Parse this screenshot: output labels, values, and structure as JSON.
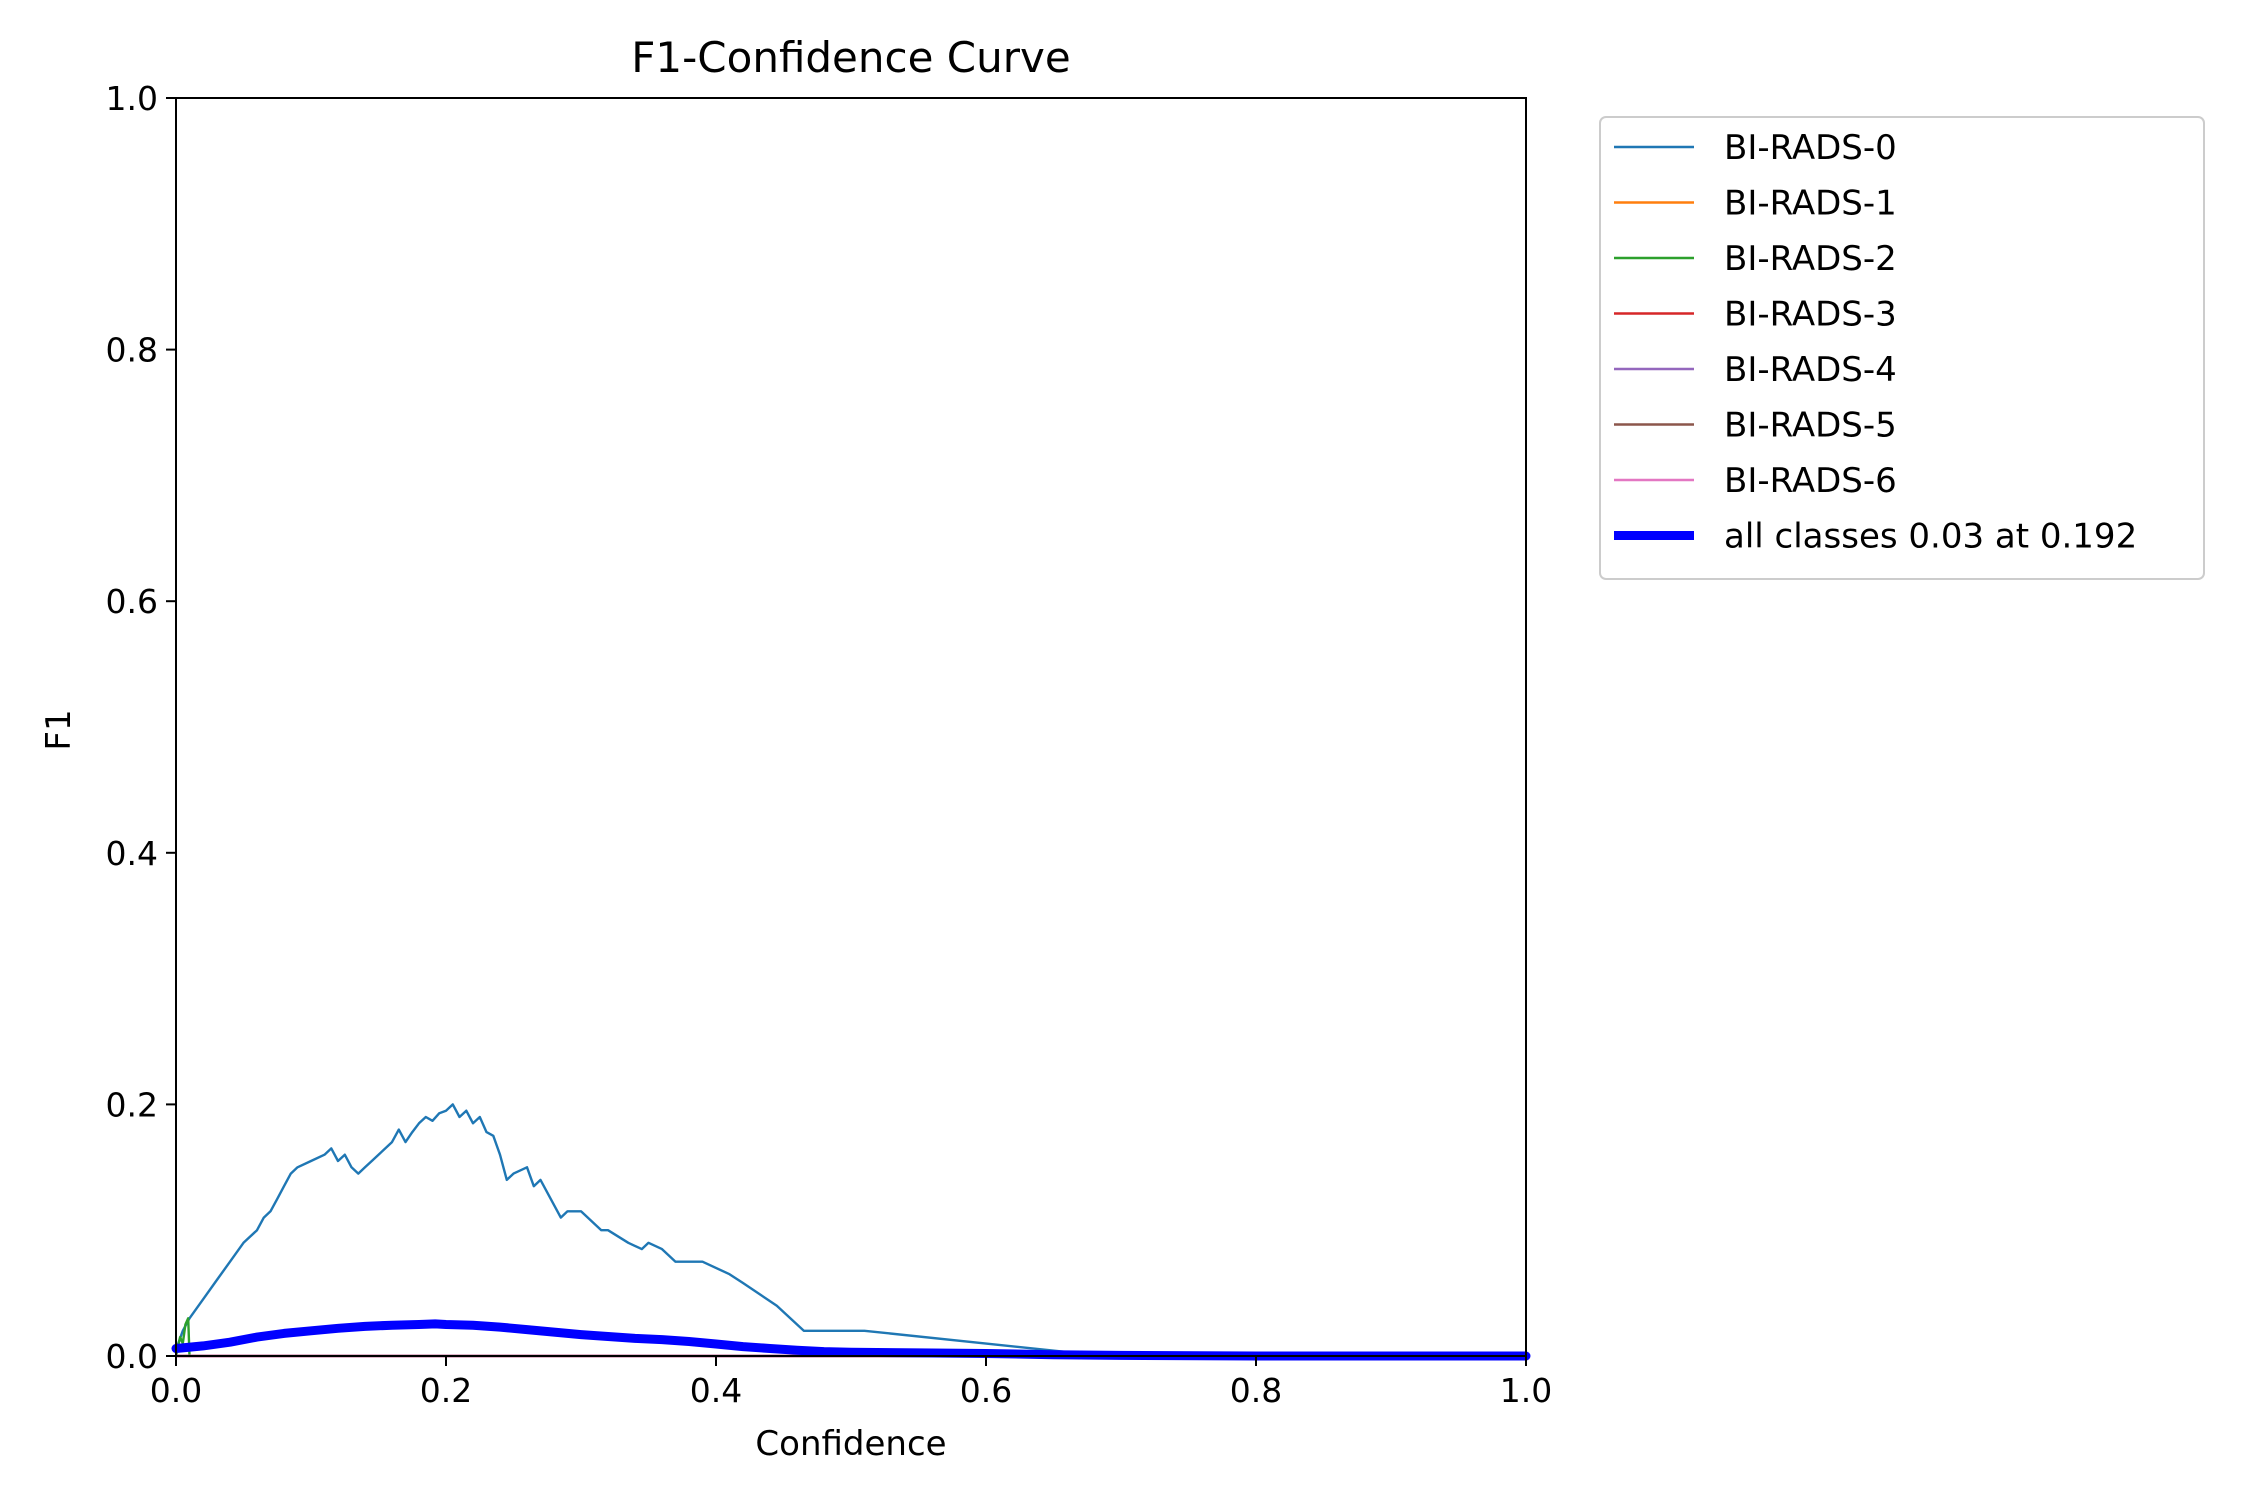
{
  "chart_data": {
    "type": "line",
    "title": "F1-Confidence Curve",
    "xlabel": "Confidence",
    "ylabel": "F1",
    "xlim": [
      0,
      1
    ],
    "ylim": [
      0,
      1
    ],
    "x_ticks": [
      "0.0",
      "0.2",
      "0.4",
      "0.6",
      "0.8",
      "1.0"
    ],
    "y_ticks": [
      "0.0",
      "0.2",
      "0.4",
      "0.6",
      "0.8",
      "1.0"
    ],
    "grid": false,
    "legend_position": "outside-top-right",
    "series": [
      {
        "name": "BI-RADS-0",
        "color": "#1f77b4",
        "x": [
          0.0,
          0.005,
          0.01,
          0.02,
          0.03,
          0.04,
          0.05,
          0.06,
          0.065,
          0.07,
          0.075,
          0.08,
          0.085,
          0.09,
          0.1,
          0.11,
          0.115,
          0.12,
          0.125,
          0.13,
          0.135,
          0.14,
          0.145,
          0.15,
          0.155,
          0.16,
          0.165,
          0.17,
          0.175,
          0.18,
          0.185,
          0.19,
          0.195,
          0.2,
          0.205,
          0.21,
          0.215,
          0.22,
          0.225,
          0.23,
          0.235,
          0.24,
          0.245,
          0.25,
          0.26,
          0.265,
          0.27,
          0.285,
          0.29,
          0.3,
          0.315,
          0.32,
          0.335,
          0.345,
          0.35,
          0.36,
          0.37,
          0.39,
          0.41,
          0.42,
          0.445,
          0.465,
          0.51,
          0.67,
          1.0
        ],
        "y": [
          0.005,
          0.02,
          0.03,
          0.045,
          0.06,
          0.075,
          0.09,
          0.1,
          0.11,
          0.115,
          0.125,
          0.135,
          0.145,
          0.15,
          0.155,
          0.16,
          0.165,
          0.155,
          0.16,
          0.15,
          0.145,
          0.15,
          0.155,
          0.16,
          0.165,
          0.17,
          0.18,
          0.17,
          0.178,
          0.185,
          0.19,
          0.187,
          0.193,
          0.195,
          0.2,
          0.19,
          0.195,
          0.185,
          0.19,
          0.178,
          0.175,
          0.16,
          0.14,
          0.145,
          0.15,
          0.135,
          0.14,
          0.11,
          0.115,
          0.115,
          0.1,
          0.1,
          0.09,
          0.085,
          0.09,
          0.085,
          0.075,
          0.075,
          0.065,
          0.058,
          0.04,
          0.02,
          0.02,
          0.002,
          0.0
        ]
      },
      {
        "name": "BI-RADS-1",
        "color": "#ff7f0e",
        "x": [
          0.0,
          0.005,
          0.01,
          1.0
        ],
        "y": [
          0.0,
          0.0,
          0.0,
          0.0
        ]
      },
      {
        "name": "BI-RADS-2",
        "color": "#2ca02c",
        "x": [
          0.0,
          0.003,
          0.005,
          0.007,
          0.009,
          0.01,
          1.0
        ],
        "y": [
          0.0,
          0.015,
          0.01,
          0.025,
          0.03,
          0.0,
          0.0
        ]
      },
      {
        "name": "BI-RADS-3",
        "color": "#d62728",
        "x": [
          0.0,
          1.0
        ],
        "y": [
          0.0,
          0.0
        ]
      },
      {
        "name": "BI-RADS-4",
        "color": "#9467bd",
        "x": [
          0.0,
          1.0
        ],
        "y": [
          0.0,
          0.0
        ]
      },
      {
        "name": "BI-RADS-5",
        "color": "#8c564b",
        "x": [
          0.0,
          1.0
        ],
        "y": [
          0.0,
          0.0
        ]
      },
      {
        "name": "BI-RADS-6",
        "color": "#e377c2",
        "x": [
          0.0,
          1.0
        ],
        "y": [
          0.0,
          0.0
        ]
      },
      {
        "name": "all classes 0.03 at 0.192",
        "color": "#0000ff",
        "bold": true,
        "x": [
          0.0,
          0.02,
          0.04,
          0.06,
          0.08,
          0.1,
          0.12,
          0.14,
          0.16,
          0.18,
          0.192,
          0.2,
          0.22,
          0.24,
          0.26,
          0.28,
          0.3,
          0.32,
          0.34,
          0.36,
          0.38,
          0.4,
          0.42,
          0.44,
          0.46,
          0.48,
          0.5,
          0.55,
          0.6,
          0.65,
          0.7,
          0.8,
          0.9,
          1.0
        ],
        "y": [
          0.006,
          0.008,
          0.011,
          0.015,
          0.018,
          0.02,
          0.022,
          0.0235,
          0.0245,
          0.025,
          0.0255,
          0.025,
          0.0245,
          0.023,
          0.021,
          0.019,
          0.017,
          0.0155,
          0.014,
          0.013,
          0.0115,
          0.0095,
          0.0075,
          0.006,
          0.0045,
          0.0035,
          0.003,
          0.0025,
          0.002,
          0.001,
          0.0005,
          0.0,
          0.0,
          0.0
        ]
      }
    ]
  }
}
